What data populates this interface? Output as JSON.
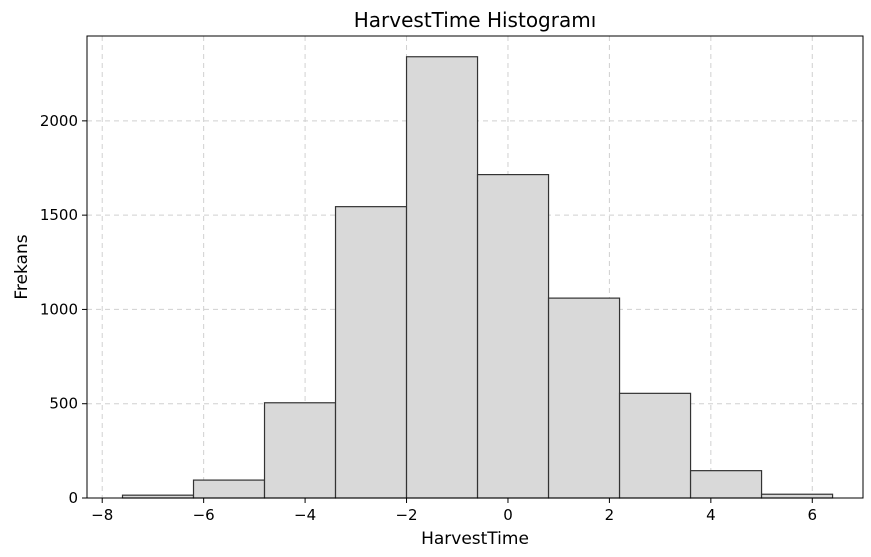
{
  "chart_data": {
    "type": "bar",
    "title": "HarvestTime Histogramı",
    "xlabel": "HarvestTime",
    "ylabel": "Frekans",
    "xlim": [
      -8.3,
      7.0
    ],
    "ylim": [
      0,
      2450
    ],
    "grid": true,
    "bin_edges": [
      -7.6,
      -6.2,
      -4.8,
      -3.4,
      -2.0,
      -0.6,
      0.8,
      2.2,
      3.6,
      5.0,
      6.4
    ],
    "values": [
      15,
      95,
      505,
      1545,
      2340,
      1715,
      1060,
      555,
      145,
      20
    ],
    "xticks": [
      -8,
      -6,
      -4,
      -2,
      0,
      2,
      4,
      6
    ],
    "xtick_labels": [
      "−8",
      "−6",
      "−4",
      "−2",
      "0",
      "2",
      "4",
      "6"
    ],
    "yticks": [
      0,
      500,
      1000,
      1500,
      2000
    ],
    "ytick_labels": [
      "0",
      "500",
      "1000",
      "1500",
      "2000"
    ],
    "colors": {
      "bar_fill": "#d9d9d9",
      "bar_edge": "#333333"
    }
  }
}
